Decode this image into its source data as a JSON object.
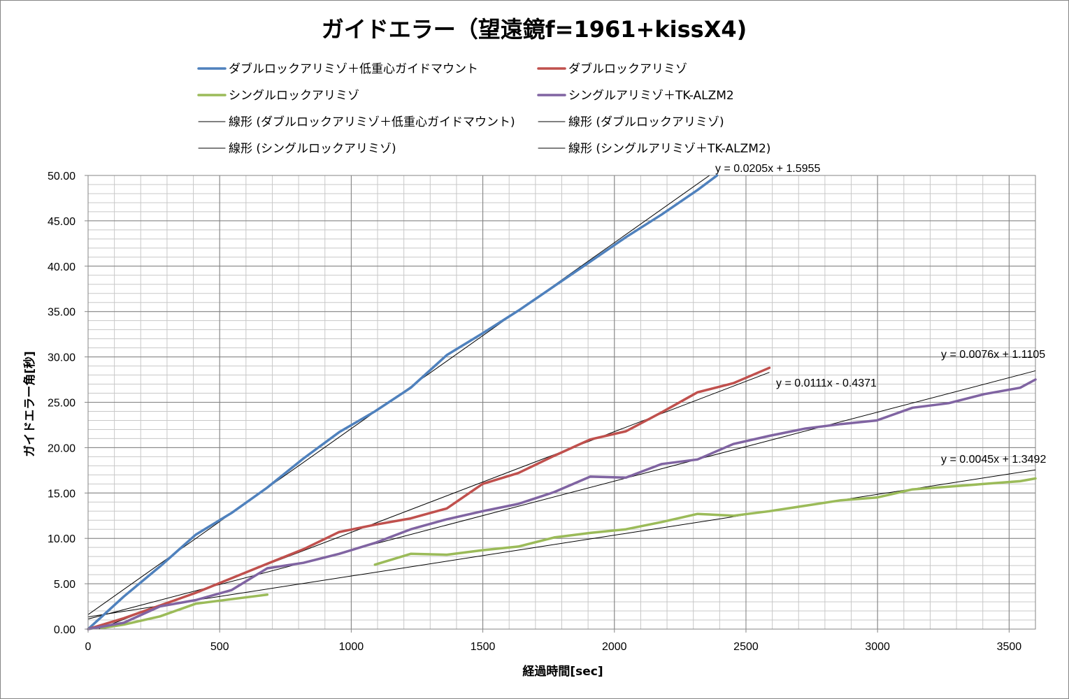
{
  "chart_data": {
    "type": "line",
    "title": "ガイドエラー（望遠鏡f=1961+kissX4)",
    "xlabel": "経過時間[sec]",
    "ylabel": "ガイドエラー角[秒]",
    "xlim": [
      0,
      3600
    ],
    "ylim": [
      0,
      50
    ],
    "x_ticks": [
      "0",
      "500",
      "1000",
      "1500",
      "2000",
      "2500",
      "3000",
      "3500"
    ],
    "y_ticks": [
      "0.00",
      "5.00",
      "10.00",
      "15.00",
      "20.00",
      "25.00",
      "30.00",
      "35.00",
      "40.00",
      "45.00",
      "50.00"
    ],
    "grid": true,
    "legend_position": "top",
    "series": [
      {
        "name": "ダブルロックアリミゾ＋低重心ガイドマウント",
        "color": "#4F81BD",
        "points": [
          [
            0,
            0.0
          ],
          [
            136,
            3.6
          ],
          [
            273,
            6.9
          ],
          [
            409,
            10.4
          ],
          [
            545,
            12.8
          ],
          [
            681,
            15.6
          ],
          [
            818,
            18.8
          ],
          [
            954,
            21.7
          ],
          [
            1090,
            24.0
          ],
          [
            1226,
            26.6
          ],
          [
            1363,
            30.2
          ],
          [
            1499,
            32.6
          ],
          [
            1635,
            35.1
          ],
          [
            1771,
            37.8
          ],
          [
            1908,
            40.5
          ],
          [
            2044,
            43.2
          ],
          [
            2180,
            45.7
          ],
          [
            2316,
            48.4
          ],
          [
            2390,
            50.0
          ]
        ]
      },
      {
        "name": "ダブルロックアリミゾ",
        "color": "#C0504D",
        "points": [
          [
            0,
            0.0
          ],
          [
            136,
            1.2
          ],
          [
            273,
            2.6
          ],
          [
            409,
            4.0
          ],
          [
            545,
            5.6
          ],
          [
            681,
            7.2
          ],
          [
            818,
            8.8
          ],
          [
            954,
            10.7
          ],
          [
            1090,
            11.5
          ],
          [
            1226,
            12.2
          ],
          [
            1363,
            13.3
          ],
          [
            1499,
            16.0
          ],
          [
            1635,
            17.2
          ],
          [
            1771,
            19.1
          ],
          [
            1908,
            20.9
          ],
          [
            2044,
            21.8
          ],
          [
            2180,
            23.9
          ],
          [
            2316,
            26.1
          ],
          [
            2452,
            27.1
          ],
          [
            2589,
            28.8
          ]
        ]
      },
      {
        "name": "シングルロックアリミゾ",
        "color": "#9BBB59",
        "segments": [
          [
            [
              50,
              0.1
            ],
            [
              136,
              0.5
            ],
            [
              273,
              1.4
            ],
            [
              409,
              2.8
            ],
            [
              545,
              3.3
            ],
            [
              681,
              3.8
            ]
          ],
          [
            [
              1090,
              7.1
            ],
            [
              1226,
              8.3
            ],
            [
              1363,
              8.2
            ],
            [
              1499,
              8.7
            ],
            [
              1635,
              9.1
            ],
            [
              1771,
              10.1
            ],
            [
              1908,
              10.6
            ],
            [
              2044,
              11.0
            ],
            [
              2180,
              11.8
            ],
            [
              2316,
              12.7
            ],
            [
              2452,
              12.5
            ],
            [
              2589,
              13.0
            ],
            [
              2725,
              13.6
            ],
            [
              2861,
              14.2
            ],
            [
              2997,
              14.5
            ],
            [
              3133,
              15.4
            ],
            [
              3270,
              15.7
            ],
            [
              3406,
              16.0
            ],
            [
              3542,
              16.3
            ],
            [
              3600,
              16.6
            ]
          ]
        ]
      },
      {
        "name": "シングルアリミゾ＋TK-ALZM2",
        "color": "#8064A2",
        "points": [
          [
            0,
            0.0
          ],
          [
            136,
            0.7
          ],
          [
            273,
            2.5
          ],
          [
            409,
            3.2
          ],
          [
            545,
            4.3
          ],
          [
            681,
            6.7
          ],
          [
            818,
            7.3
          ],
          [
            954,
            8.3
          ],
          [
            1090,
            9.5
          ],
          [
            1226,
            11.0
          ],
          [
            1363,
            12.1
          ],
          [
            1499,
            13.0
          ],
          [
            1635,
            13.8
          ],
          [
            1771,
            15.1
          ],
          [
            1908,
            16.8
          ],
          [
            2044,
            16.7
          ],
          [
            2180,
            18.2
          ],
          [
            2316,
            18.7
          ],
          [
            2452,
            20.4
          ],
          [
            2589,
            21.3
          ],
          [
            2725,
            22.1
          ],
          [
            2861,
            22.6
          ],
          [
            2997,
            23.0
          ],
          [
            3133,
            24.4
          ],
          [
            3270,
            24.9
          ],
          [
            3406,
            25.9
          ],
          [
            3542,
            26.6
          ],
          [
            3600,
            27.5
          ]
        ]
      }
    ],
    "trendlines": [
      {
        "name": "線形 (ダブルロックアリミゾ＋低重心ガイドマウント)",
        "slope": 0.0205,
        "intercept": 1.5955,
        "x_range": [
          0,
          2400
        ],
        "equation": "y = 0.0205x + 1.5955"
      },
      {
        "name": "線形 (ダブルロックアリミゾ)",
        "slope": 0.0111,
        "intercept": -0.4371,
        "x_range": [
          0,
          2589
        ],
        "equation": "y = 0.0111x - 0.4371"
      },
      {
        "name": "線形 (シングルロックアリミゾ)",
        "slope": 0.0045,
        "intercept": 1.3492,
        "x_range": [
          0,
          3600
        ],
        "equation": "y = 0.0045x + 1.3492"
      },
      {
        "name": "線形 (シングルアリミゾ＋TK-ALZM2)",
        "slope": 0.0076,
        "intercept": 1.1105,
        "x_range": [
          0,
          3600
        ],
        "equation": "y = 0.0076x + 1.1105"
      }
    ]
  }
}
